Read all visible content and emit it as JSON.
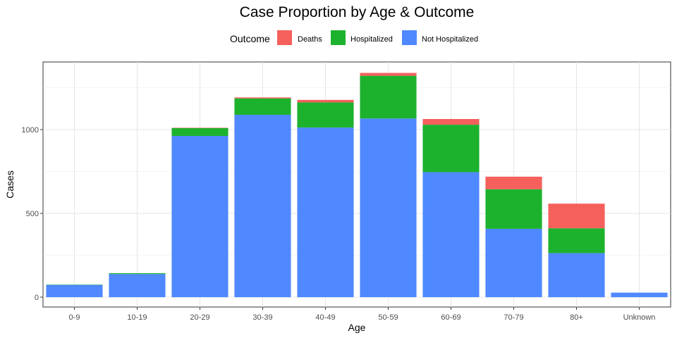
{
  "chart_data": {
    "type": "bar",
    "stacked": true,
    "title": "Case Proportion by Age & Outcome",
    "xlabel": "Age",
    "ylabel": "Cases",
    "ylim": [
      0,
      1350
    ],
    "yticks": [
      0,
      500,
      1000
    ],
    "ytick_labels": [
      "0",
      "500",
      "1000"
    ],
    "grid": true,
    "legend": {
      "title": "Outcome",
      "placement": "top"
    },
    "categories": [
      "0-9",
      "10-19",
      "20-29",
      "30-39",
      "40-49",
      "50-59",
      "60-69",
      "70-79",
      "80+",
      "Unknown"
    ],
    "series": [
      {
        "name": "Not Hospitalized",
        "color": "#4F88FF",
        "values": [
          73,
          138,
          962,
          1088,
          1012,
          1066,
          746,
          408,
          263,
          27
        ]
      },
      {
        "name": "Hospitalized",
        "color": "#1DB22E",
        "values": [
          2,
          5,
          47,
          98,
          150,
          255,
          283,
          236,
          148,
          0
        ]
      },
      {
        "name": "Deaths",
        "color": "#F5605C",
        "values": [
          0,
          0,
          2,
          6,
          15,
          17,
          34,
          75,
          147,
          0
        ]
      }
    ],
    "legend_order": [
      "Deaths",
      "Hospitalized",
      "Not Hospitalized"
    ]
  }
}
